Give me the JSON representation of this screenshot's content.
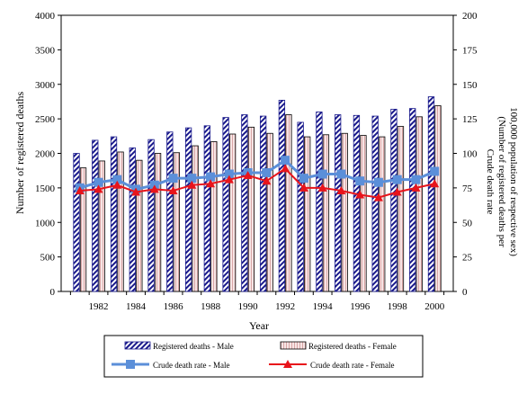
{
  "chart_data": {
    "type": "bar+line",
    "xlabel": "Year",
    "ylabel_left": "Number of registered deaths",
    "ylabel_right_line1": "Crude death rate",
    "ylabel_right_line2": "(Number of registered deaths per",
    "ylabel_right_line3": "100,000 population of respective sex)",
    "ylim_left": [
      0,
      4000
    ],
    "ylim_right": [
      0,
      200
    ],
    "left_ticks": [
      0,
      500,
      1000,
      1500,
      2000,
      2500,
      3000,
      3500,
      4000
    ],
    "right_ticks": [
      0,
      25,
      50,
      75,
      100,
      125,
      150,
      175,
      200
    ],
    "x": [
      1981,
      1982,
      1983,
      1984,
      1985,
      1986,
      1987,
      1988,
      1989,
      1990,
      1991,
      1992,
      1993,
      1994,
      1995,
      1996,
      1997,
      1998,
      1999,
      2000
    ],
    "x_tick_labels": [
      "1982",
      "1984",
      "1986",
      "1988",
      "1990",
      "1992",
      "1994",
      "1996",
      "1998",
      "2000"
    ],
    "bar_series": [
      {
        "name": "Registered deaths - Male",
        "values": [
          2000,
          2190,
          2240,
          2080,
          2200,
          2310,
          2370,
          2400,
          2520,
          2560,
          2540,
          2770,
          2450,
          2600,
          2560,
          2550,
          2540,
          2640,
          2650,
          2820
        ]
      },
      {
        "name": "Registered deaths - Female",
        "values": [
          1790,
          1890,
          2020,
          1900,
          2000,
          2010,
          2110,
          2170,
          2280,
          2380,
          2290,
          2560,
          2240,
          2270,
          2290,
          2260,
          2240,
          2390,
          2530,
          2690
        ]
      }
    ],
    "line_series": [
      {
        "name": "Crude death rate - Male",
        "values": [
          75,
          79,
          81,
          74,
          77,
          82,
          82,
          83,
          85,
          86,
          86,
          95,
          82,
          85,
          85,
          80,
          79,
          81,
          81,
          87
        ]
      },
      {
        "name": "Crude death rate - Female",
        "values": [
          73,
          74,
          77,
          72,
          74,
          73,
          77,
          78,
          81,
          84,
          80,
          89,
          75,
          75,
          73,
          70,
          68,
          72,
          75,
          78
        ]
      }
    ],
    "legend_position": "bottom",
    "colors": {
      "male_bar": "#1a1a8c",
      "female_bar": "#f2d0d0",
      "male_line": "#5b8fd9",
      "female_line": "#e8141b"
    }
  }
}
